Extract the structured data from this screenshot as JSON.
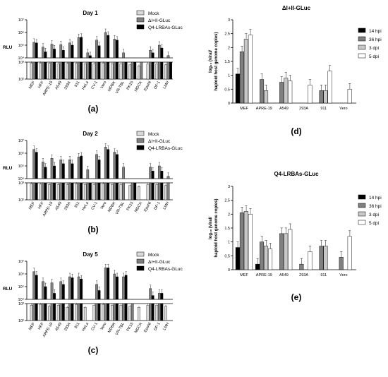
{
  "panels_left": {
    "ylabel": "RLU",
    "categories": [
      "MEF",
      "HFF",
      "ARPE-19",
      "A549",
      "293A",
      "911",
      "HeLa",
      "CV-1",
      "Vero",
      "MDBK",
      "VR-TBL",
      "PK15",
      "MDCK",
      "EpoNi",
      "DF-1",
      "LMH"
    ],
    "series_names": [
      "Mock",
      "ΔI+II-GLuc",
      "Q4-LRBAs-GLuc"
    ],
    "colors": [
      "#d9d9d9",
      "#7f7f7f",
      "#000000"
    ],
    "upper_ticks": [
      "10⁷",
      "10⁶",
      "10⁵",
      "10⁴"
    ],
    "lower_ticks": [
      "10³",
      "10²"
    ]
  },
  "panels_right": {
    "ylabel_line1": "log₁₀ (viral/",
    "ylabel_line2": "haploid host genome copies)",
    "categories": [
      "MEF",
      "APRE-19",
      "A549",
      "293A",
      "911",
      "Vero"
    ],
    "series_names": [
      "14 hpi",
      "36 hpi",
      "3 dpi",
      "5 dpi"
    ],
    "colors": [
      "#000000",
      "#7f7f7f",
      "#c8c8c8",
      "#ffffff"
    ],
    "yticks": [
      "0",
      "0.5",
      "1",
      "1.5",
      "2",
      "2.5",
      "3"
    ]
  },
  "chart_data": [
    {
      "type": "bar",
      "panel": "(a)",
      "title": "Day 1",
      "ylabel": "RLU",
      "yscale": "log",
      "categories": [
        "MEF",
        "HFF",
        "ARPE-19",
        "A549",
        "293A",
        "911",
        "HeLa",
        "CV-1",
        "Vero",
        "MDBK",
        "VR-TBL",
        "PK15",
        "MDCK",
        "EpoNi",
        "DF-1",
        "LMH"
      ],
      "series": [
        {
          "name": "Mock",
          "values": [
            900,
            900,
            850,
            800,
            850,
            850,
            800,
            800,
            900,
            800,
            800,
            700,
            600,
            800,
            800,
            700
          ]
        },
        {
          "name": "ΔI+II-GLuc",
          "values": [
            170000,
            70000,
            120000,
            110000,
            150000,
            400000,
            25000,
            250000,
            1000000,
            300000,
            25000,
            3000,
            1000,
            40000,
            100000,
            15000
          ]
        },
        {
          "name": "Q4-LRBAs-GLuc",
          "values": [
            150000,
            30000,
            50000,
            40000,
            100000,
            420000,
            15000,
            90000,
            600000,
            250000,
            6000,
            1500,
            null,
            25000,
            60000,
            6000
          ]
        }
      ]
    },
    {
      "type": "bar",
      "panel": "(b)",
      "title": "Day 2",
      "ylabel": "RLU",
      "yscale": "log",
      "categories": [
        "MEF",
        "HFF",
        "ARPE-19",
        "A549",
        "293A",
        "911",
        "HeLa",
        "CV-1",
        "Vero",
        "MDBK",
        "VR-TBL",
        "PK15",
        "MDCK",
        "EpoNi",
        "DF-1",
        "LMH"
      ],
      "series": [
        {
          "name": "Mock",
          "values": [
            900,
            850,
            800,
            800,
            800,
            900,
            800,
            800,
            900,
            800,
            800,
            700,
            600,
            800,
            800,
            700
          ]
        },
        {
          "name": "ΔI+II-GLuc",
          "values": [
            2000000,
            200000,
            400000,
            300000,
            300000,
            500000,
            50000,
            800000,
            3000000,
            1200000,
            80000,
            3000,
            null,
            80000,
            100000,
            15000
          ]
        },
        {
          "name": "Q4-LRBAs-GLuc",
          "values": [
            1200000,
            80000,
            100000,
            150000,
            150000,
            600000,
            8000,
            300000,
            2000000,
            800000,
            null,
            3000,
            null,
            40000,
            40000,
            null
          ]
        }
      ]
    },
    {
      "type": "bar",
      "panel": "(c)",
      "title": "Day 5",
      "ylabel": "RLU",
      "yscale": "log",
      "categories": [
        "MEF",
        "HFF",
        "ARPE-19",
        "A549",
        "293A",
        "911",
        "HeLa",
        "CV-1",
        "Vero",
        "MDBK",
        "VR-TBL",
        "PK15",
        "MDCK",
        "EpoNi",
        "DF-1",
        "LMH"
      ],
      "series": [
        {
          "name": "Mock",
          "values": [
            800,
            900,
            700,
            800,
            600,
            900,
            600,
            800,
            900,
            800,
            800,
            700,
            600,
            800,
            800,
            700
          ]
        },
        {
          "name": "ΔI+II-GLuc",
          "values": [
            1500000,
            250000,
            200000,
            250000,
            600000,
            600000,
            null,
            150000,
            3000000,
            1000000,
            600000,
            2000,
            null,
            70000,
            30000,
            null
          ]
        },
        {
          "name": "Q4-LRBAs-GLuc",
          "values": [
            800000,
            100000,
            30000,
            150000,
            500000,
            400000,
            null,
            50000,
            3000000,
            600000,
            800000,
            null,
            null,
            20000,
            30000,
            null
          ]
        }
      ]
    },
    {
      "type": "bar",
      "panel": "(d)",
      "title": "ΔI+II-GLuc",
      "ylabel": "log₁₀ (viral/ haploid host genome copies)",
      "ylim": [
        0,
        3
      ],
      "categories": [
        "MEF",
        "APRE-19",
        "A549",
        "293A",
        "911",
        "Vero"
      ],
      "series": [
        {
          "name": "14 hpi",
          "values": [
            1.05,
            0,
            0,
            0,
            0,
            0
          ]
        },
        {
          "name": "36 hpi",
          "values": [
            1.85,
            0.85,
            0.75,
            0,
            0.45,
            0
          ]
        },
        {
          "name": "3 dpi",
          "values": [
            2.3,
            0.45,
            0.9,
            0,
            0.45,
            0
          ]
        },
        {
          "name": "5 dpi",
          "values": [
            2.45,
            0,
            0.8,
            0.65,
            1.15,
            0.5
          ]
        }
      ]
    },
    {
      "type": "bar",
      "panel": "(e)",
      "title": "Q4-LRBAs-GLuc",
      "ylabel": "log₁₀ (viral/ haploid host genome copies)",
      "ylim": [
        0,
        3
      ],
      "categories": [
        "MEF",
        "APRE-19",
        "A549",
        "293A",
        "911",
        "Vero"
      ],
      "series": [
        {
          "name": "14 hpi",
          "values": [
            0.8,
            0.2,
            0,
            0,
            0,
            0
          ]
        },
        {
          "name": "36 hpi",
          "values": [
            2.05,
            1.0,
            1.3,
            0.2,
            0.85,
            0.45
          ]
        },
        {
          "name": "3 dpi",
          "values": [
            2.1,
            0.85,
            1.3,
            0,
            0.85,
            0
          ]
        },
        {
          "name": "5 dpi",
          "values": [
            2.0,
            0.75,
            1.45,
            0.65,
            0,
            1.2
          ]
        }
      ]
    }
  ]
}
